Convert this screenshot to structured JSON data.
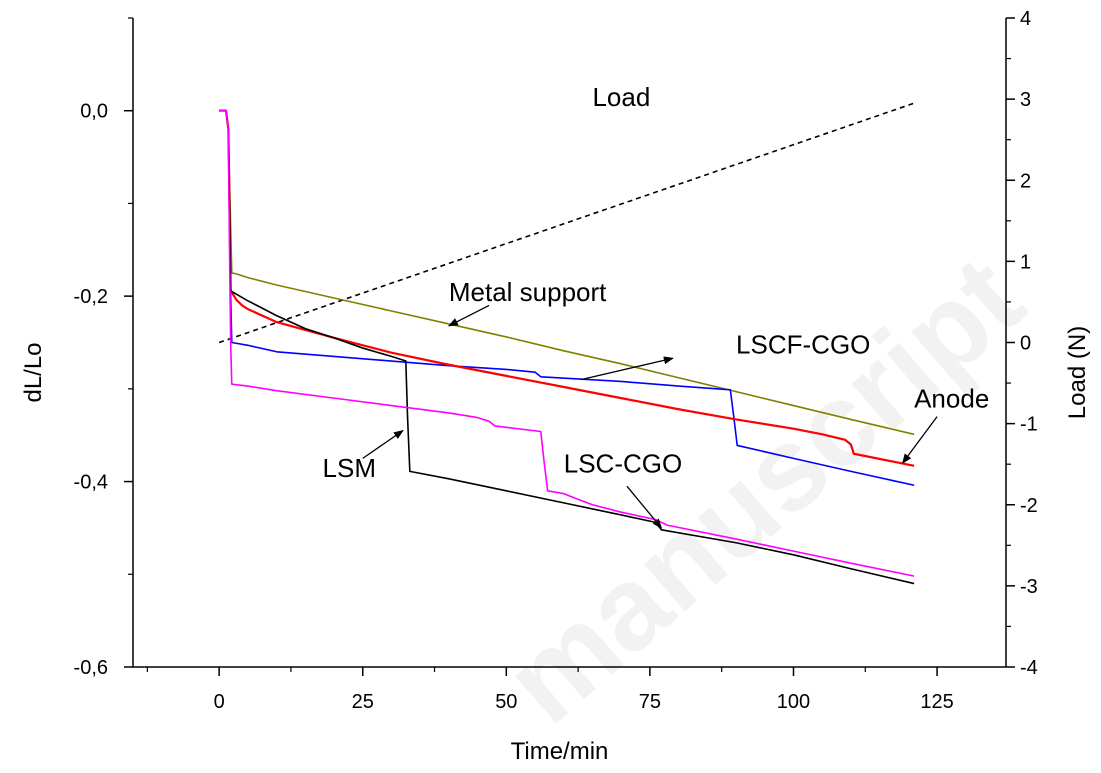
{
  "chart_data": {
    "type": "line",
    "watermark": "manuscript",
    "xlabel": "Time/min",
    "ylabel": "dL/Lo",
    "y2label": "Load (N)",
    "xlim": [
      -15,
      137
    ],
    "ylim": [
      -0.6,
      0.1
    ],
    "y2lim": [
      -4,
      4
    ],
    "xticks": [
      0,
      25,
      50,
      75,
      100,
      125
    ],
    "xtick_labels": [
      "0",
      "25",
      "50",
      "75",
      "100",
      "125"
    ],
    "yticks": [
      0.0,
      -0.2,
      -0.4,
      -0.6
    ],
    "ytick_labels": [
      "0,0",
      "-0,2",
      "-0,4",
      "-0,6"
    ],
    "y2ticks": [
      4,
      3,
      2,
      1,
      0,
      -1,
      -2,
      -3,
      -4
    ],
    "y2tick_labels": [
      "4",
      "3",
      "2",
      "1",
      "0",
      "-1",
      "-2",
      "-3",
      "-4"
    ],
    "grid": false,
    "series": [
      {
        "name": "Load",
        "axis": "right",
        "color": "#000000",
        "dash": true,
        "x": [
          0,
          121
        ],
        "y": [
          0.0,
          2.95
        ]
      },
      {
        "name": "Metal support",
        "axis": "left",
        "color": "#808000",
        "x": [
          0,
          1.2,
          1.6,
          1.9,
          2.2,
          3,
          5,
          10,
          20,
          30,
          40,
          50,
          60,
          70,
          80,
          90,
          100,
          110,
          121
        ],
        "y": [
          0,
          0,
          -0.02,
          -0.1,
          -0.175,
          -0.176,
          -0.18,
          -0.188,
          -0.202,
          -0.216,
          -0.23,
          -0.244,
          -0.259,
          -0.273,
          -0.288,
          -0.303,
          -0.318,
          -0.333,
          -0.349
        ]
      },
      {
        "name": "LSCF-CGO",
        "axis": "left",
        "color": "#0000ff",
        "x": [
          0,
          1.2,
          1.6,
          1.8,
          2.0,
          2.2,
          5,
          10,
          20,
          30,
          40,
          50,
          55,
          56,
          70,
          80,
          89,
          89.6,
          90.2,
          100,
          110,
          121
        ],
        "y": [
          0,
          0,
          -0.02,
          -0.1,
          -0.2,
          -0.25,
          -0.253,
          -0.26,
          -0.265,
          -0.27,
          -0.275,
          -0.279,
          -0.282,
          -0.287,
          -0.292,
          -0.297,
          -0.301,
          -0.33,
          -0.361,
          -0.375,
          -0.389,
          -0.404
        ]
      },
      {
        "name": "Anode",
        "axis": "left",
        "color": "#ff0000",
        "x": [
          0,
          1.2,
          1.6,
          1.8,
          2.0,
          2.2,
          3,
          4,
          5,
          10,
          20,
          30,
          40,
          50,
          60,
          70,
          80,
          90,
          100,
          105,
          109,
          110,
          110.5,
          121
        ],
        "y": [
          0,
          0,
          -0.02,
          -0.1,
          -0.195,
          -0.196,
          -0.204,
          -0.21,
          -0.214,
          -0.228,
          -0.245,
          -0.261,
          -0.274,
          -0.286,
          -0.298,
          -0.31,
          -0.322,
          -0.333,
          -0.343,
          -0.349,
          -0.355,
          -0.36,
          -0.37,
          -0.383
        ]
      },
      {
        "name": "LSM",
        "axis": "left",
        "color": "#000000",
        "x": [
          0,
          1.2,
          1.6,
          1.8,
          2.0,
          2.2,
          5,
          10,
          15,
          20,
          25,
          30,
          32.5,
          32.8,
          33.2,
          40,
          50,
          60,
          70,
          76,
          77,
          90,
          100,
          110,
          121
        ],
        "y": [
          0,
          0,
          -0.02,
          -0.1,
          -0.193,
          -0.195,
          -0.205,
          -0.221,
          -0.235,
          -0.245,
          -0.256,
          -0.265,
          -0.27,
          -0.33,
          -0.389,
          -0.397,
          -0.41,
          -0.423,
          -0.436,
          -0.444,
          -0.452,
          -0.466,
          -0.479,
          -0.494,
          -0.51
        ]
      },
      {
        "name": "LSC-CGO",
        "axis": "left",
        "color": "#ff00ff",
        "x": [
          0,
          1.2,
          1.6,
          1.8,
          2.0,
          2.2,
          5,
          10,
          20,
          30,
          40,
          45,
          47,
          48,
          56,
          56.6,
          57.2,
          60,
          62,
          65,
          70,
          76,
          78,
          90,
          100,
          110,
          121
        ],
        "y": [
          0,
          0,
          -0.02,
          -0.15,
          -0.25,
          -0.295,
          -0.297,
          -0.302,
          -0.31,
          -0.318,
          -0.326,
          -0.331,
          -0.335,
          -0.34,
          -0.346,
          -0.38,
          -0.41,
          -0.413,
          -0.418,
          -0.425,
          -0.433,
          -0.441,
          -0.447,
          -0.462,
          -0.475,
          -0.488,
          -0.502
        ]
      }
    ],
    "annotations": [
      {
        "text": "Load",
        "x": 65,
        "y": 0.005,
        "arrow": false
      },
      {
        "text": "Metal support",
        "x": 40,
        "y": -0.205,
        "arrow": true,
        "arrow_from": [
          47,
          -0.21
        ],
        "arrow_to": [
          40,
          -0.232
        ]
      },
      {
        "text": "LSCF-CGO",
        "x": 90,
        "y": -0.262,
        "arrow": true,
        "arrow_from": [
          63,
          -0.29
        ],
        "arrow_to": [
          79,
          -0.267
        ]
      },
      {
        "text": "Anode",
        "x": 121,
        "y": -0.32,
        "arrow": true,
        "arrow_from": [
          125,
          -0.33
        ],
        "arrow_to": [
          119,
          -0.38
        ]
      },
      {
        "text": "LSM",
        "x": 18,
        "y": -0.395,
        "arrow": true,
        "arrow_from": [
          25,
          -0.375
        ],
        "arrow_to": [
          32,
          -0.345
        ]
      },
      {
        "text": "LSC-CGO",
        "x": 60,
        "y": -0.39,
        "arrow": true,
        "arrow_from": [
          71,
          -0.405
        ],
        "arrow_to": [
          77,
          -0.45
        ]
      }
    ]
  }
}
